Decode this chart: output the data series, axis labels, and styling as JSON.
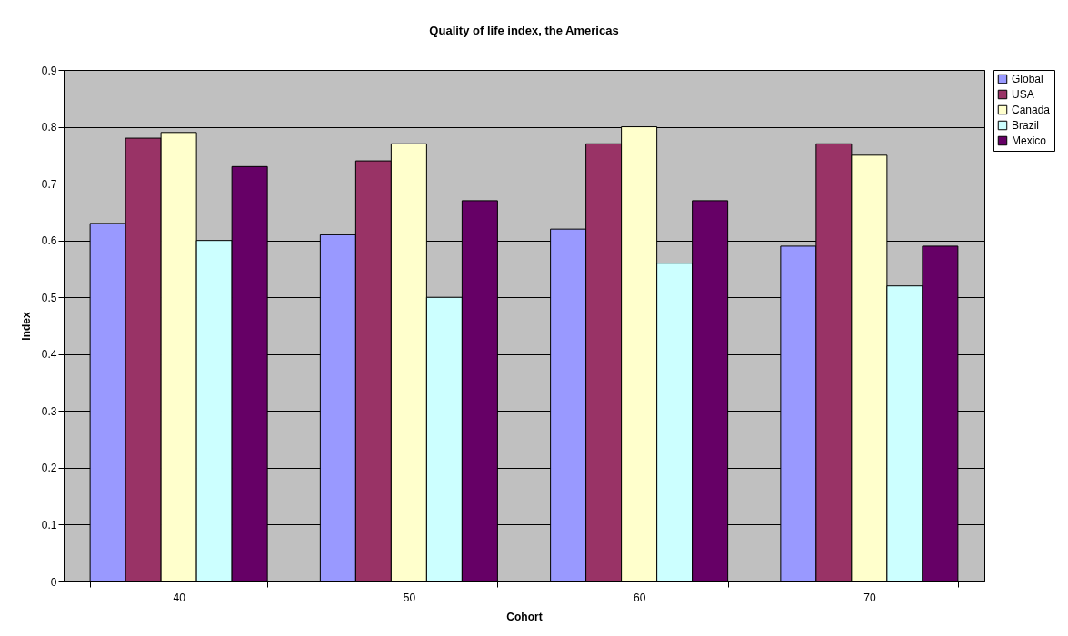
{
  "chart_data": {
    "type": "bar",
    "title": "Quality of life index, the Americas",
    "xlabel": "Cohort",
    "ylabel": "Index",
    "categories": [
      "40",
      "50",
      "60",
      "70"
    ],
    "series": [
      {
        "name": "Global",
        "color": "#9999ff",
        "values": [
          0.63,
          0.61,
          0.62,
          0.59
        ]
      },
      {
        "name": "USA",
        "color": "#993366",
        "values": [
          0.78,
          0.74,
          0.77,
          0.77
        ]
      },
      {
        "name": "Canada",
        "color": "#ffffcc",
        "values": [
          0.79,
          0.77,
          0.8,
          0.75
        ]
      },
      {
        "name": "Brazil",
        "color": "#ccffff",
        "values": [
          0.6,
          0.5,
          0.56,
          0.52
        ]
      },
      {
        "name": "Mexico",
        "color": "#660066",
        "values": [
          0.73,
          0.67,
          0.67,
          0.59
        ]
      }
    ],
    "ylim": [
      0,
      0.9
    ],
    "yticks": [
      0,
      0.1,
      0.2,
      0.3,
      0.4,
      0.5,
      0.6,
      0.7,
      0.8,
      0.9
    ],
    "grid": "y",
    "legend": "right"
  }
}
